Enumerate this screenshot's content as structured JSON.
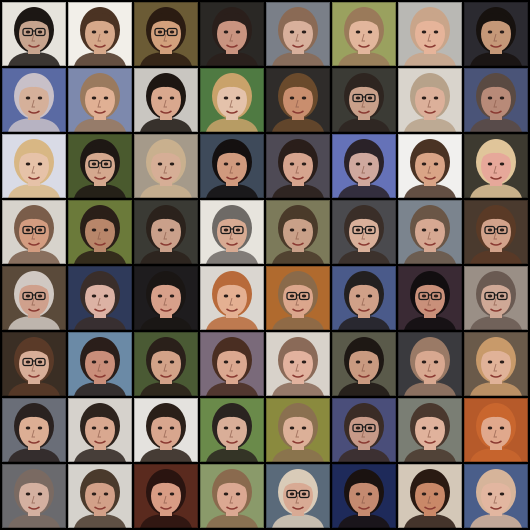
{
  "grid": {
    "rows": 8,
    "cols": 8,
    "separator_color": "#000000",
    "tiles": [
      {
        "bg": "#e6e3dc",
        "skin": "#c7a48e",
        "hair": "#1c1714",
        "glasses": true
      },
      {
        "bg": "#f2efe9",
        "skin": "#d6a88a",
        "hair": "#4b3323",
        "glasses": false
      },
      {
        "bg": "#6b5b35",
        "skin": "#d2a07c",
        "hair": "#2b1c12",
        "glasses": true
      },
      {
        "bg": "#2a2825",
        "skin": "#c99480",
        "hair": "#2a1f1b",
        "glasses": false
      },
      {
        "bg": "#7a7f88",
        "skin": "#d8b09c",
        "hair": "#8a6a55",
        "glasses": false
      },
      {
        "bg": "#9aa15f",
        "skin": "#e2b69c",
        "hair": "#9a7a5a",
        "glasses": false
      },
      {
        "bg": "#b9b8b4",
        "skin": "#e6b49a",
        "hair": "#c9a58a",
        "glasses": false
      },
      {
        "bg": "#2b2a30",
        "skin": "#c59878",
        "hair": "#17120f",
        "glasses": false
      },
      {
        "bg": "#5a6aa3",
        "skin": "#d5b09a",
        "hair": "#c8c0c8",
        "glasses": false
      },
      {
        "bg": "#7d89ad",
        "skin": "#e0b094",
        "hair": "#9a7a5e",
        "glasses": false
      },
      {
        "bg": "#c9c6c1",
        "skin": "#d9a88e",
        "hair": "#1d1612",
        "glasses": false
      },
      {
        "bg": "#4f7a42",
        "skin": "#e4c2ab",
        "hair": "#c9a26a",
        "glasses": false
      },
      {
        "bg": "#2f2c2a",
        "skin": "#c98e6e",
        "hair": "#6a4a2c",
        "glasses": false
      },
      {
        "bg": "#3b3b35",
        "skin": "#c9a08a",
        "hair": "#2e2520",
        "glasses": true
      },
      {
        "bg": "#d9d4cc",
        "skin": "#dcb09a",
        "hair": "#b7a28a",
        "glasses": false
      },
      {
        "bg": "#4a5478",
        "skin": "#b88a78",
        "hair": "#5a4a42",
        "glasses": false
      },
      {
        "bg": "#d9dbe6",
        "skin": "#e6c2a8",
        "hair": "#d8b784",
        "glasses": false
      },
      {
        "bg": "#4a5a2e",
        "skin": "#d4a88e",
        "hair": "#1e1814",
        "glasses": true
      },
      {
        "bg": "#a59a8a",
        "skin": "#d6ae96",
        "hair": "#c9b08e",
        "glasses": false
      },
      {
        "bg": "#3e4a5a",
        "skin": "#d09a7e",
        "hair": "#141010",
        "glasses": false
      },
      {
        "bg": "#4e4a55",
        "skin": "#d6a48e",
        "hair": "#2a1e1a",
        "glasses": false
      },
      {
        "bg": "#6572b8",
        "skin": "#cfa89e",
        "hair": "#2a2228",
        "glasses": false
      },
      {
        "bg": "#f1f0ee",
        "skin": "#d9a486",
        "hair": "#4a3324",
        "glasses": false
      },
      {
        "bg": "#3d3a30",
        "skin": "#e6a89a",
        "hair": "#e0c59a",
        "glasses": false
      },
      {
        "bg": "#d7d3cc",
        "skin": "#d39c80",
        "hair": "#7a5d4a",
        "glasses": true
      },
      {
        "bg": "#6b7a3a",
        "skin": "#b8866a",
        "hair": "#2a1f18",
        "glasses": false
      },
      {
        "bg": "#3a3a34",
        "skin": "#caa08a",
        "hair": "#2b221c",
        "glasses": false
      },
      {
        "bg": "#e7e4dd",
        "skin": "#d8aa92",
        "hair": "#6e6a66",
        "glasses": true
      },
      {
        "bg": "#7c7a5a",
        "skin": "#c9a088",
        "hair": "#4a3a2a",
        "glasses": false
      },
      {
        "bg": "#4a4a4e",
        "skin": "#d9b09a",
        "hair": "#3a2e28",
        "glasses": true
      },
      {
        "bg": "#7b848e",
        "skin": "#d6a892",
        "hair": "#6a5646",
        "glasses": false
      },
      {
        "bg": "#4a3a2e",
        "skin": "#d2a28a",
        "hair": "#5a3a26",
        "glasses": true
      },
      {
        "bg": "#5a4a3a",
        "skin": "#cfa08c",
        "hair": "#d0c8c2",
        "glasses": true
      },
      {
        "bg": "#2f3a5a",
        "skin": "#dcb2a4",
        "hair": "#3a2e2a",
        "glasses": false
      },
      {
        "bg": "#1e1c1e",
        "skin": "#d7a08a",
        "hair": "#1a1614",
        "glasses": false
      },
      {
        "bg": "#dad6d0",
        "skin": "#e4b092",
        "hair": "#b86a3a",
        "glasses": false
      },
      {
        "bg": "#b06a2e",
        "skin": "#dba68c",
        "hair": "#8a6a4a",
        "glasses": true
      },
      {
        "bg": "#4a5a8a",
        "skin": "#d0a088",
        "hair": "#232020",
        "glasses": false
      },
      {
        "bg": "#3a2a34",
        "skin": "#c9907a",
        "hair": "#120e10",
        "glasses": true
      },
      {
        "bg": "#9a8f86",
        "skin": "#cfa896",
        "hair": "#6a5a52",
        "glasses": true
      },
      {
        "bg": "#3a2e24",
        "skin": "#d8ae98",
        "hair": "#5a3a28",
        "glasses": true
      },
      {
        "bg": "#6b8aa6",
        "skin": "#c98e7a",
        "hair": "#2a1e1a",
        "glasses": false
      },
      {
        "bg": "#4a5a34",
        "skin": "#d2a288",
        "hair": "#2a201a",
        "glasses": false
      },
      {
        "bg": "#7a6a7a",
        "skin": "#dba890",
        "hair": "#4a2e22",
        "glasses": false
      },
      {
        "bg": "#d8d2ca",
        "skin": "#e2b29e",
        "hair": "#8a6a58",
        "glasses": false
      },
      {
        "bg": "#5a5a4a",
        "skin": "#c99a80",
        "hair": "#1e1814",
        "glasses": false
      },
      {
        "bg": "#3a3a3e",
        "skin": "#d8a890",
        "hair": "#9a7a66",
        "glasses": false
      },
      {
        "bg": "#6a5a4a",
        "skin": "#e0b298",
        "hair": "#c89a6a",
        "glasses": false
      },
      {
        "bg": "#6a6e78",
        "skin": "#dcae94",
        "hair": "#2a2220",
        "glasses": false
      },
      {
        "bg": "#d6d2cc",
        "skin": "#d9a890",
        "hair": "#2e241e",
        "glasses": false
      },
      {
        "bg": "#e4e2de",
        "skin": "#d8a68e",
        "hair": "#2a1f18",
        "glasses": false
      },
      {
        "bg": "#6a8a4a",
        "skin": "#d9ae98",
        "hair": "#2a2420",
        "glasses": false
      },
      {
        "bg": "#8a8a3e",
        "skin": "#dcb098",
        "hair": "#8a7050",
        "glasses": false
      },
      {
        "bg": "#4a4e7a",
        "skin": "#c79a88",
        "hair": "#3a2c26",
        "glasses": true
      },
      {
        "bg": "#7a7e74",
        "skin": "#e0b29c",
        "hair": "#4a382e",
        "glasses": false
      },
      {
        "bg": "#b65a2a",
        "skin": "#e0a88c",
        "hair": "#c9662e",
        "glasses": false
      },
      {
        "bg": "#6a6a6e",
        "skin": "#d4b0a0",
        "hair": "#7a6a62",
        "glasses": false
      },
      {
        "bg": "#d5d2cc",
        "skin": "#d2a088",
        "hair": "#4a3a2c",
        "glasses": false
      },
      {
        "bg": "#5a2a1e",
        "skin": "#d89c84",
        "hair": "#2a1410",
        "glasses": false
      },
      {
        "bg": "#8a9a6a",
        "skin": "#dba892",
        "hair": "#8a6a4e",
        "glasses": false
      },
      {
        "bg": "#5a6a7a",
        "skin": "#d8aa94",
        "hair": "#d9cbb8",
        "glasses": true
      },
      {
        "bg": "#1e2a5a",
        "skin": "#c48a70",
        "hair": "#1a1210",
        "glasses": false
      },
      {
        "bg": "#d4c8b8",
        "skin": "#c98868",
        "hair": "#2a1a12",
        "glasses": false
      },
      {
        "bg": "#4a5e8a",
        "skin": "#e2b6a0",
        "hair": "#d6b49a",
        "glasses": false
      }
    ]
  }
}
